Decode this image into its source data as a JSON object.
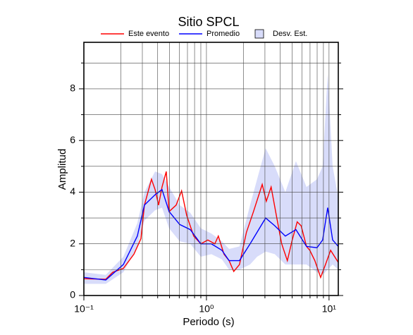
{
  "chart_data": {
    "type": "line",
    "title": "Sitio SPCL",
    "xlabel": "Periodo (s)",
    "ylabel": "Amplitud",
    "x_scale": "log",
    "xlim": [
      0.1,
      11.9
    ],
    "ylim": [
      0,
      9.8
    ],
    "xticks": [
      {
        "value": 0.1,
        "label": "10⁻¹"
      },
      {
        "value": 1,
        "label": "10⁰"
      },
      {
        "value": 10,
        "label": "10¹"
      }
    ],
    "x_minor_ticks": [
      0.2,
      0.3,
      0.4,
      0.5,
      0.6,
      0.7,
      0.8,
      0.9,
      2,
      3,
      4,
      5,
      6,
      7,
      8,
      9
    ],
    "yticks": [
      0,
      2,
      4,
      6,
      8
    ],
    "y_minor_ticks": [
      1,
      3,
      5,
      7,
      9
    ],
    "grid": true,
    "band": {
      "name": "Desv. Est.",
      "color": "#d8dcfa",
      "x": [
        0.1,
        0.151,
        0.21,
        0.273,
        0.312,
        0.381,
        0.434,
        0.496,
        0.605,
        0.738,
        0.9,
        1.097,
        1.337,
        1.53,
        1.86,
        2.27,
        2.59,
        3.04,
        3.61,
        4.4,
        5.37,
        6.55,
        7.98,
        8.87,
        9.75,
        10.7,
        11.9
      ],
      "upper": [
        0.9,
        0.8,
        1.5,
        2.8,
        4.0,
        4.8,
        4.7,
        4.2,
        3.5,
        3.2,
        2.6,
        2.4,
        2.1,
        1.8,
        1.9,
        3.5,
        4.5,
        5.7,
        5.0,
        4.0,
        5.2,
        4.2,
        4.5,
        5.0,
        8.6,
        5.0,
        3.8
      ],
      "lower": [
        0.45,
        0.45,
        0.9,
        1.9,
        2.9,
        3.3,
        3.4,
        2.6,
        2.1,
        2.0,
        1.5,
        1.6,
        1.4,
        1.0,
        1.0,
        1.2,
        1.5,
        1.7,
        1.6,
        1.2,
        1.2,
        1.2,
        0.9,
        0.8,
        1.0,
        1.2,
        1.0
      ]
    },
    "series": [
      {
        "name": "Este evento",
        "color": "#ff0000",
        "x": [
          0.1,
          0.151,
          0.172,
          0.21,
          0.256,
          0.292,
          0.312,
          0.356,
          0.381,
          0.407,
          0.434,
          0.47,
          0.496,
          0.566,
          0.627,
          0.69,
          0.787,
          0.9,
          1.026,
          1.17,
          1.25,
          1.39,
          1.53,
          1.67,
          1.86,
          2.12,
          2.42,
          2.85,
          3.08,
          3.37,
          3.75,
          4.11,
          4.57,
          5.01,
          5.5,
          5.92,
          6.55,
          6.97,
          7.66,
          8.54,
          9.36,
          10.3,
          11.9
        ],
        "values": [
          0.65,
          0.63,
          0.9,
          1.05,
          1.6,
          2.2,
          3.5,
          4.5,
          4.1,
          3.5,
          4.2,
          4.8,
          3.25,
          3.5,
          4.05,
          3.1,
          2.3,
          2.0,
          2.15,
          2.0,
          2.3,
          1.6,
          1.35,
          0.93,
          1.2,
          2.45,
          3.25,
          4.3,
          3.65,
          4.2,
          3.0,
          2.0,
          1.35,
          2.15,
          2.85,
          2.7,
          1.9,
          1.75,
          1.35,
          0.7,
          1.2,
          1.75,
          1.28
        ]
      },
      {
        "name": "Promedio",
        "color": "#0000ff",
        "x": [
          0.1,
          0.151,
          0.21,
          0.273,
          0.312,
          0.381,
          0.434,
          0.496,
          0.605,
          0.738,
          0.9,
          1.097,
          1.337,
          1.53,
          1.86,
          2.27,
          2.59,
          3.04,
          3.61,
          4.4,
          5.37,
          6.55,
          7.98,
          8.87,
          9.75,
          10.7,
          11.9
        ],
        "values": [
          0.7,
          0.6,
          1.2,
          2.3,
          3.5,
          3.9,
          4.1,
          3.25,
          2.75,
          2.55,
          2.0,
          2.0,
          1.75,
          1.35,
          1.35,
          2.0,
          2.45,
          3.0,
          2.7,
          2.3,
          2.55,
          1.9,
          1.85,
          2.15,
          3.4,
          2.15,
          1.9
        ]
      }
    ]
  }
}
